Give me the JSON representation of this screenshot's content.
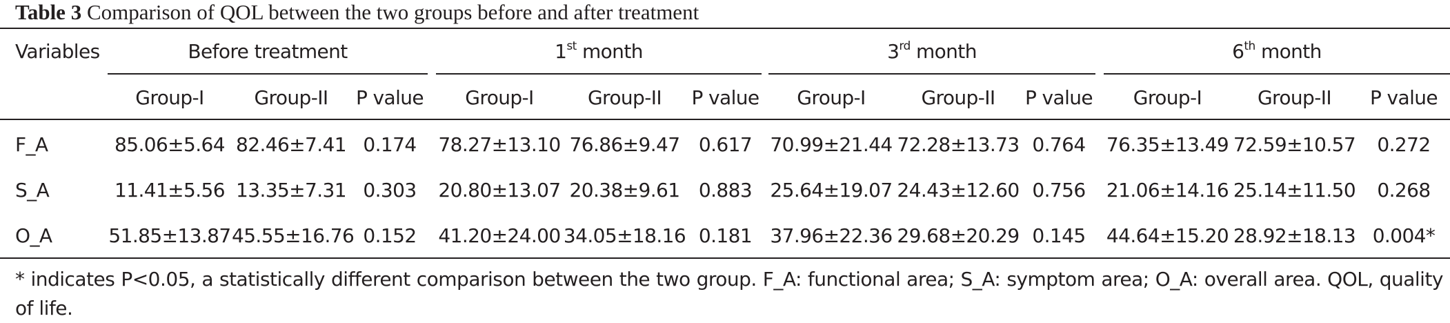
{
  "title": {
    "label": "Table 3",
    "text": "Comparison of QOL between the two groups before and after treatment"
  },
  "header": {
    "variables": "Variables",
    "periods": [
      {
        "base": "Before treatment",
        "sup": "",
        "rest": ""
      },
      {
        "base": "1",
        "sup": "st",
        "rest": " month"
      },
      {
        "base": "3",
        "sup": "rd",
        "rest": " month"
      },
      {
        "base": "6",
        "sup": "th",
        "rest": " month"
      }
    ],
    "subcols": [
      "Group-I",
      "Group-II",
      "P value"
    ]
  },
  "rows": [
    {
      "label": "F_A",
      "cells": [
        "85.06±5.64",
        "82.46±7.41",
        "0.174",
        "78.27±13.10",
        "76.86±9.47",
        "0.617",
        "70.99±21.44",
        "72.28±13.73",
        "0.764",
        "76.35±13.49",
        "72.59±10.57",
        "0.272"
      ]
    },
    {
      "label": "S_A",
      "cells": [
        "11.41±5.56",
        "13.35±7.31",
        "0.303",
        "20.80±13.07",
        "20.38±9.61",
        "0.883",
        "25.64±19.07",
        "24.43±12.60",
        "0.756",
        "21.06±14.16",
        "25.14±11.50",
        "0.268"
      ]
    },
    {
      "label": "O_A",
      "cells": [
        "51.85±13.87",
        "45.55±16.76",
        "0.152",
        "41.20±24.00",
        "34.05±18.16",
        "0.181",
        "37.96±22.36",
        "29.68±20.29",
        "0.145",
        "44.64±15.20",
        "28.92±18.13",
        "0.004*"
      ]
    }
  ],
  "footnote": "* indicates P<0.05, a statistically different comparison between the two group. F_A: functional area; S_A: symptom area; O_A: overall area. QOL, quality of life."
}
